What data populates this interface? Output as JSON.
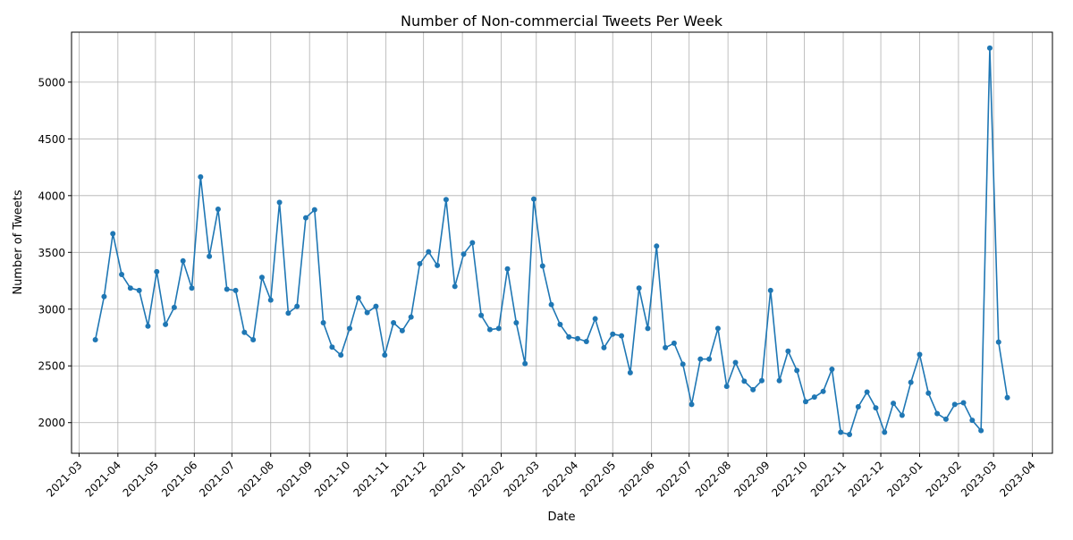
{
  "chart_data": {
    "type": "line",
    "title": "Number of Non-commercial Tweets Per Week",
    "xlabel": "Date",
    "ylabel": "Number of Tweets",
    "ylim": [
      1730,
      5440
    ],
    "xlim": [
      "2021-02-23",
      "2023-04-17"
    ],
    "grid": true,
    "line_color": "#1f77b4",
    "x_ticks": [
      "2021-03",
      "2021-04",
      "2021-05",
      "2021-06",
      "2021-07",
      "2021-08",
      "2021-09",
      "2021-10",
      "2021-11",
      "2021-12",
      "2022-01",
      "2022-02",
      "2022-03",
      "2022-04",
      "2022-05",
      "2022-06",
      "2022-07",
      "2022-08",
      "2022-09",
      "2022-10",
      "2022-11",
      "2022-12",
      "2023-01",
      "2023-02",
      "2023-03",
      "2023-04"
    ],
    "y_ticks": [
      2000,
      2500,
      3000,
      3500,
      4000,
      4500,
      5000
    ],
    "series": [
      {
        "start_date": "2021-03-14",
        "interval_days": 7,
        "values": [
          2730,
          3110,
          3665,
          3305,
          3185,
          3165,
          2850,
          3330,
          2865,
          3015,
          3425,
          3185,
          4165,
          3465,
          3880,
          3175,
          3165,
          2795,
          2730,
          3280,
          3080,
          3940,
          2965,
          3025,
          3805,
          3875,
          2880,
          2665,
          2595,
          2830,
          3100,
          2970,
          3025,
          2595,
          2880,
          2810,
          2930,
          3400,
          3505,
          3385,
          3965,
          3200,
          3485,
          3585,
          2945,
          2820,
          2830,
          3355,
          2880,
          2520,
          3970,
          3380,
          3040,
          2865,
          2755,
          2740,
          2715,
          2915,
          2660,
          2780,
          2765,
          2440,
          3185,
          2830,
          3555,
          2660,
          2700,
          2515,
          2160,
          2560,
          2560,
          2830,
          2320,
          2530,
          2365,
          2290,
          2370,
          3165,
          2370,
          2630,
          2460,
          2185,
          2225,
          2275,
          2470,
          1915,
          1895,
          2140,
          2270,
          2130,
          1915,
          2170,
          2065,
          2355,
          2600,
          2260,
          2080,
          2030,
          2160,
          2175,
          2020,
          1930,
          5300,
          2710,
          2220
        ]
      }
    ]
  }
}
